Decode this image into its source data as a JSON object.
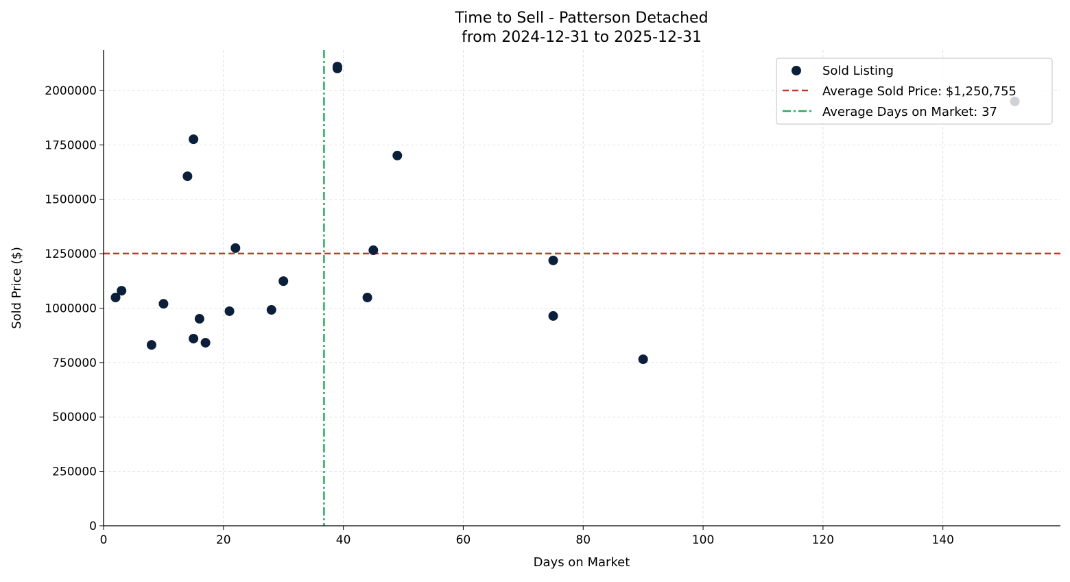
{
  "chart_data": {
    "type": "scatter",
    "title": "Time to Sell - Patterson Detached",
    "subtitle": "from 2024-12-31 to 2025-12-31",
    "xlabel": "Days on Market",
    "ylabel": "Sold Price ($)",
    "xlim": [
      0,
      159.6
    ],
    "ylim": [
      0,
      2185800
    ],
    "xticks": [
      0,
      20,
      40,
      60,
      80,
      100,
      120,
      140
    ],
    "yticks": [
      0,
      250000,
      500000,
      750000,
      1000000,
      1250000,
      1500000,
      1750000,
      2000000
    ],
    "grid": true,
    "legend_position": "top-right",
    "colors": {
      "points": "#0b1f3a",
      "avg_price": "#c0392b",
      "avg_days": "#27ae60",
      "grid": "#d9d9d9"
    },
    "series": [
      {
        "name": "Sold Listing",
        "points": [
          [
            2,
            1049000
          ],
          [
            3,
            1080000
          ],
          [
            8,
            831000
          ],
          [
            10,
            1020000
          ],
          [
            14,
            1606000
          ],
          [
            15,
            1776000
          ],
          [
            15,
            860000
          ],
          [
            16,
            951000
          ],
          [
            17,
            841000
          ],
          [
            21,
            986000
          ],
          [
            22,
            1276000
          ],
          [
            28,
            992000
          ],
          [
            30,
            1124000
          ],
          [
            39,
            2110000
          ],
          [
            39,
            2101000
          ],
          [
            44,
            1049000
          ],
          [
            45,
            1266000
          ],
          [
            49,
            1701000
          ],
          [
            75,
            1219000
          ],
          [
            75,
            964000
          ],
          [
            90,
            765000
          ],
          [
            152,
            1950000
          ]
        ]
      }
    ],
    "avg_price": 1250755,
    "avg_days": 36.77,
    "legend": [
      "Sold Listing",
      "Average Sold Price: $1,250,755",
      "Average Days on Market: 37"
    ]
  }
}
